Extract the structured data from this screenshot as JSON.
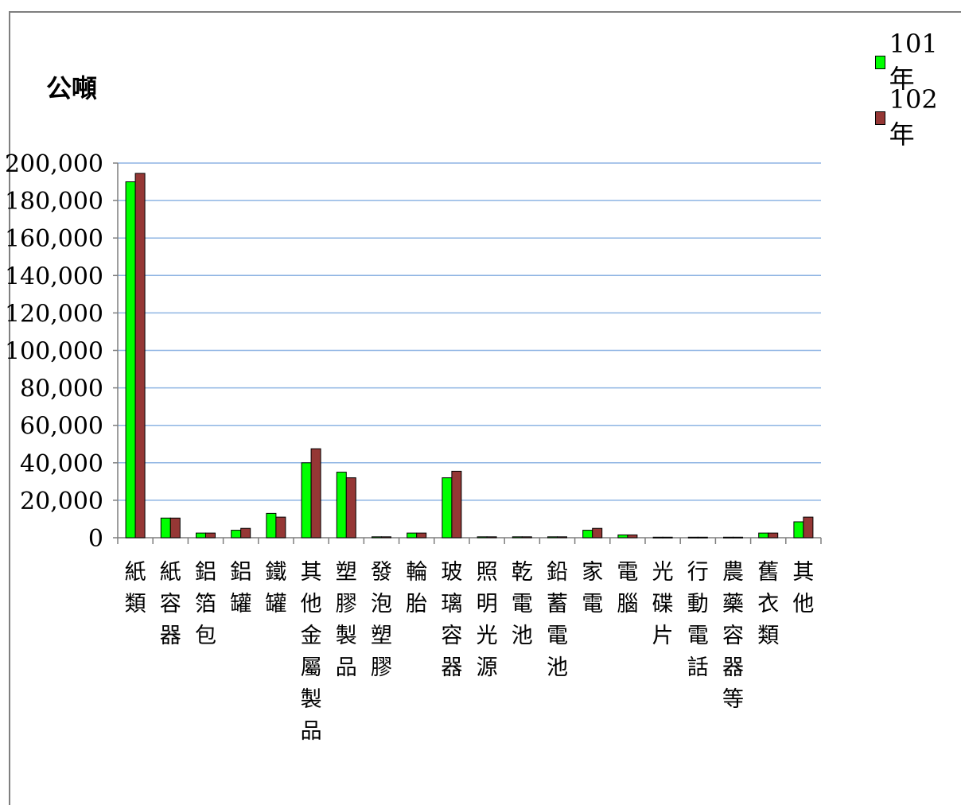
{
  "chart_data": {
    "type": "bar",
    "title": "",
    "ylabel": "公噸",
    "xlabel": "",
    "ylim": [
      0,
      200000
    ],
    "yticks": [
      0,
      20000,
      40000,
      60000,
      80000,
      100000,
      120000,
      140000,
      160000,
      180000,
      200000
    ],
    "ytick_labels": [
      "0",
      "20,000",
      "40,000",
      "60,000",
      "80,000",
      "100,000",
      "120,000",
      "140,000",
      "160,000",
      "180,000",
      "200,000"
    ],
    "grid": true,
    "legend_position": "top-right",
    "categories": [
      "紙類",
      "紙容器",
      "鋁箔包",
      "鋁罐",
      "鐵罐",
      "其他金屬製品",
      "塑膠製品",
      "發泡塑膠",
      "輪胎",
      "玻璃容器",
      "照明光源",
      "乾電池",
      "鉛蓄電池",
      "家電",
      "電腦",
      "光碟片",
      "行動電話",
      "農藥容器等",
      "舊衣類",
      "其他"
    ],
    "series": [
      {
        "name": "101年",
        "color": "#00ff00",
        "values": [
          190000,
          10500,
          2500,
          4000,
          13000,
          40000,
          35000,
          500,
          2500,
          32000,
          500,
          500,
          500,
          4000,
          1500,
          300,
          300,
          300,
          2500,
          8500
        ]
      },
      {
        "name": "102年",
        "color": "#953735",
        "values": [
          194500,
          10500,
          2500,
          5000,
          11000,
          47500,
          32000,
          500,
          2500,
          35500,
          500,
          500,
          500,
          5000,
          1500,
          300,
          300,
          300,
          2500,
          11000
        ]
      }
    ]
  }
}
